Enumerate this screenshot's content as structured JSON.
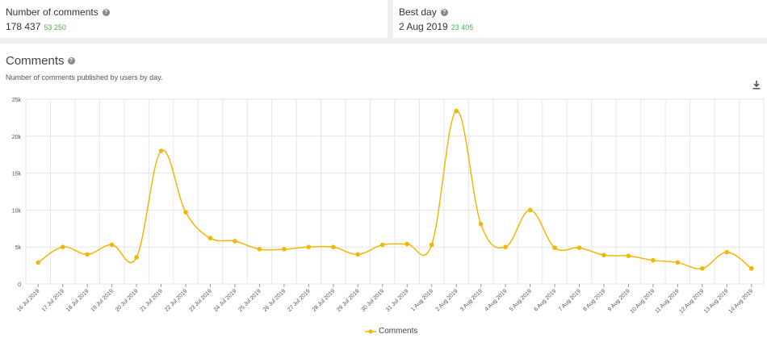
{
  "stats": {
    "comments": {
      "title": "Number of comments",
      "value": "178 437",
      "delta": "53 250"
    },
    "best_day": {
      "title": "Best day",
      "value": "2 Aug 2019",
      "delta": "23 405"
    }
  },
  "help_icon": "question-circle-icon",
  "download_icon": "download-icon",
  "colors": {
    "series": "#f2b705",
    "delta": "#4caf50",
    "grid": "#e6e6e6"
  },
  "chart_data": {
    "type": "line",
    "title": "Comments",
    "subtitle": "Number of comments published by users by day.",
    "categories": [
      "16 Jul 2019",
      "17 Jul 2019",
      "18 Jul 2019",
      "19 Jul 2019",
      "20 Jul 2019",
      "21 Jul 2019",
      "22 Jul 2019",
      "23 Jul 2019",
      "24 Jul 2019",
      "25 Jul 2019",
      "26 Jul 2019",
      "27 Jul 2019",
      "28 Jul 2019",
      "29 Jul 2019",
      "30 Jul 2019",
      "31 Jul 2019",
      "1 Aug 2019",
      "2 Aug 2019",
      "3 Aug 2019",
      "4 Aug 2019",
      "5 Aug 2019",
      "6 Aug 2019",
      "7 Aug 2019",
      "8 Aug 2019",
      "9 Aug 2019",
      "10 Aug 2019",
      "11 Aug 2019",
      "12 Aug 2019",
      "13 Aug 2019",
      "14 Aug 2019"
    ],
    "series": [
      {
        "name": "Comments",
        "values": [
          2900,
          5000,
          4000,
          5300,
          3600,
          18000,
          9700,
          6200,
          5800,
          4700,
          4700,
          5000,
          5000,
          4000,
          5300,
          5400,
          5300,
          23405,
          8100,
          5000,
          10000,
          4900,
          4900,
          3900,
          3800,
          3200,
          2900,
          2100,
          4300,
          2100
        ]
      }
    ],
    "ylim": [
      0,
      25000
    ],
    "yticks": [
      0,
      5000,
      10000,
      15000,
      20000,
      25000
    ],
    "ytick_labels": [
      "0",
      "5k",
      "10k",
      "15k",
      "20k",
      "25k"
    ],
    "grid": true,
    "legend": "bottom-center"
  }
}
